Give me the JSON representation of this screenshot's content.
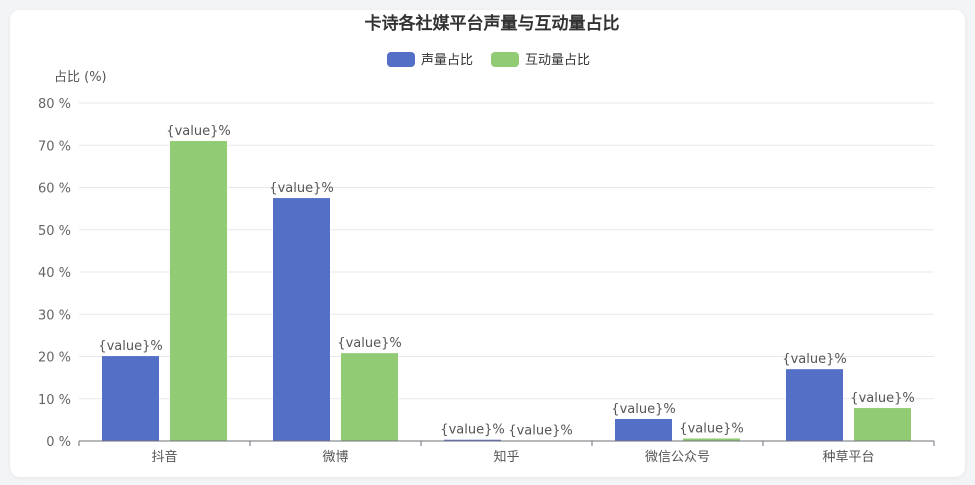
{
  "chart_data": {
    "type": "bar",
    "title": "卡诗各社媒平台声量与互动量占比",
    "ylabel": "占比 (%)",
    "xlabel": "",
    "ylim": [
      0,
      80
    ],
    "yticks": [
      0,
      10,
      20,
      30,
      40,
      50,
      60,
      70,
      80
    ],
    "ytick_format": "{v} %",
    "grid": true,
    "legend_position": "top-center",
    "categories": [
      "抖音",
      "微博",
      "知乎",
      "微信公众号",
      "种草平台"
    ],
    "series": [
      {
        "name": "声量占比",
        "color": "#5470c6",
        "values": [
          20.1,
          57.5,
          0.3,
          5.2,
          17.0
        ]
      },
      {
        "name": "互动量占比",
        "color": "#91cc75",
        "values": [
          71.0,
          20.8,
          0.1,
          0.6,
          7.8
        ]
      }
    ],
    "data_label": "{value}%"
  }
}
